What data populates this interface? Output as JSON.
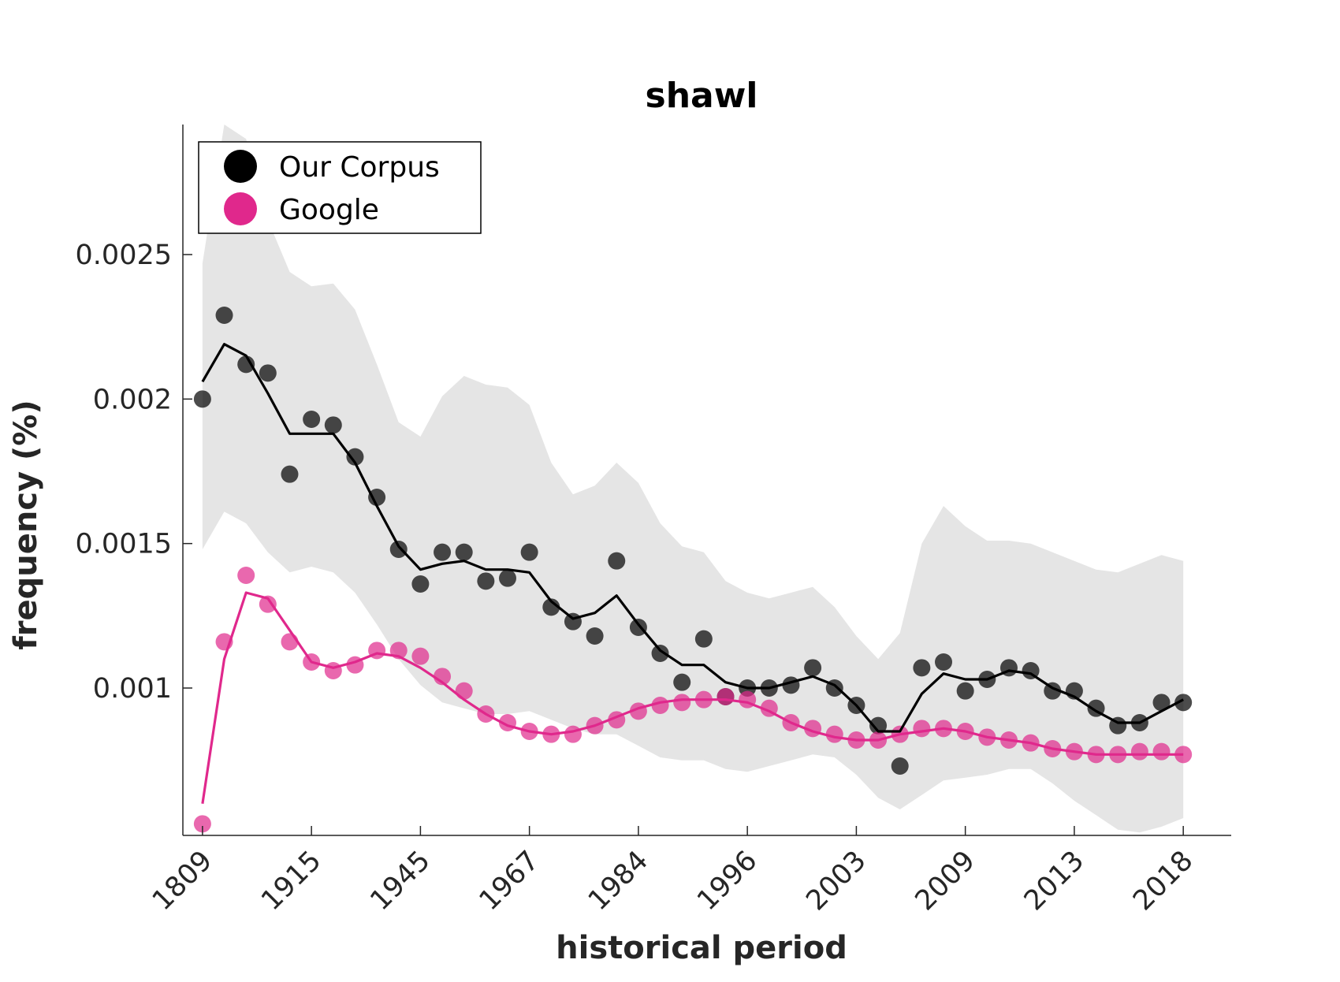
{
  "chart_data": {
    "type": "scatter",
    "title": "shawl",
    "xlabel": "historical period",
    "ylabel": "frequency (%)",
    "x_tick_labels": [
      "1809",
      "1915",
      "1945",
      "1967",
      "1984",
      "1996",
      "2003",
      "2009",
      "2013",
      "2018"
    ],
    "x_tick_positions": [
      1,
      6,
      11,
      16,
      21,
      26,
      31,
      36,
      41,
      46
    ],
    "xlim": [
      0.1,
      48.2
    ],
    "ylim": [
      0.00049,
      0.00295
    ],
    "y_ticks": [
      0.001,
      0.0015,
      0.002,
      0.0025
    ],
    "y_tick_labels": [
      "0.001",
      "0.0015",
      "0.002",
      "0.0025"
    ],
    "grid": false,
    "legend": {
      "position": "top-left",
      "entries": [
        "Our Corpus",
        "Google"
      ]
    },
    "colors": {
      "corpus": "#000000",
      "google": "#e0288c",
      "band": "#e5e5e5"
    },
    "series": [
      {
        "name": "Our Corpus",
        "points": [
          0.002,
          0.00229,
          0.00212,
          0.00209,
          0.00174,
          0.00193,
          0.00191,
          0.0018,
          0.00166,
          0.00148,
          0.00136,
          0.00147,
          0.00147,
          0.00137,
          0.00138,
          0.00147,
          0.00128,
          0.00123,
          0.00118,
          0.00144,
          0.00121,
          0.00112,
          0.00102,
          0.00117,
          0.00097,
          0.001,
          0.001,
          0.00101,
          0.00107,
          0.001,
          0.00094,
          0.00087,
          0.00073,
          0.00107,
          0.00109,
          0.00099,
          0.00103,
          0.00107,
          0.00106,
          0.00099,
          0.00099,
          0.00093,
          0.00087,
          0.00088,
          0.00095,
          0.00095
        ],
        "smoothed": [
          0.00206,
          0.00219,
          0.00215,
          0.00202,
          0.00188,
          0.00188,
          0.00188,
          0.00178,
          0.00163,
          0.00149,
          0.00141,
          0.00143,
          0.00144,
          0.00141,
          0.00141,
          0.0014,
          0.0013,
          0.00124,
          0.00126,
          0.00132,
          0.00122,
          0.00113,
          0.00108,
          0.00108,
          0.00102,
          0.001,
          0.001,
          0.00102,
          0.00104,
          0.00101,
          0.00094,
          0.00085,
          0.00085,
          0.00098,
          0.00105,
          0.00103,
          0.00103,
          0.00106,
          0.00105,
          0.001,
          0.00097,
          0.00092,
          0.00088,
          0.00088,
          0.00092,
          0.00096
        ],
        "band_upper": [
          0.00247,
          0.00295,
          0.0029,
          0.00262,
          0.00244,
          0.00239,
          0.0024,
          0.00231,
          0.00212,
          0.00192,
          0.00187,
          0.00201,
          0.00208,
          0.00205,
          0.00204,
          0.00198,
          0.00178,
          0.00167,
          0.0017,
          0.00178,
          0.00171,
          0.00157,
          0.00149,
          0.00147,
          0.00137,
          0.00133,
          0.00131,
          0.00133,
          0.00135,
          0.00128,
          0.00118,
          0.0011,
          0.00119,
          0.0015,
          0.00163,
          0.00156,
          0.00151,
          0.00151,
          0.0015,
          0.00147,
          0.00144,
          0.00141,
          0.0014,
          0.00143,
          0.00146,
          0.00144
        ],
        "band_lower": [
          0.00148,
          0.00161,
          0.00157,
          0.00147,
          0.0014,
          0.00142,
          0.0014,
          0.00133,
          0.00122,
          0.0011,
          0.00101,
          0.00095,
          0.00093,
          0.00091,
          0.00091,
          0.00092,
          0.00089,
          0.00086,
          0.00084,
          0.00084,
          0.0008,
          0.00076,
          0.00075,
          0.00075,
          0.00072,
          0.00071,
          0.00073,
          0.00075,
          0.00077,
          0.00076,
          0.0007,
          0.00062,
          0.00058,
          0.00063,
          0.00068,
          0.00069,
          0.0007,
          0.00072,
          0.00072,
          0.00067,
          0.00061,
          0.00056,
          0.00051,
          0.0005,
          0.00052,
          0.00055
        ]
      },
      {
        "name": "Google",
        "points": [
          0.00053,
          0.00116,
          0.00139,
          0.00129,
          0.00116,
          0.00109,
          0.00106,
          0.00108,
          0.00113,
          0.00113,
          0.00111,
          0.00104,
          0.00099,
          0.00091,
          0.00088,
          0.00085,
          0.00084,
          0.00084,
          0.00087,
          0.00089,
          0.00092,
          0.00094,
          0.00095,
          0.00096,
          0.00097,
          0.00096,
          0.00093,
          0.00088,
          0.00086,
          0.00084,
          0.00082,
          0.00082,
          0.00084,
          0.00086,
          0.00086,
          0.00085,
          0.00083,
          0.00082,
          0.00081,
          0.00079,
          0.00078,
          0.00077,
          0.00077,
          0.00078,
          0.00078,
          0.00077
        ],
        "smoothed": [
          0.0006,
          0.0011,
          0.00133,
          0.00131,
          0.0012,
          0.00109,
          0.00107,
          0.00109,
          0.00112,
          0.00111,
          0.00107,
          0.00102,
          0.00096,
          0.00091,
          0.00087,
          0.00085,
          0.00084,
          0.00085,
          0.00087,
          0.0009,
          0.00093,
          0.00095,
          0.00096,
          0.00096,
          0.00096,
          0.00095,
          0.00092,
          0.00088,
          0.00085,
          0.00083,
          0.00082,
          0.00082,
          0.00084,
          0.00085,
          0.00086,
          0.00085,
          0.00083,
          0.00082,
          0.00081,
          0.00079,
          0.00078,
          0.00077,
          0.00077,
          0.00077,
          0.00077,
          0.00077
        ]
      }
    ]
  }
}
